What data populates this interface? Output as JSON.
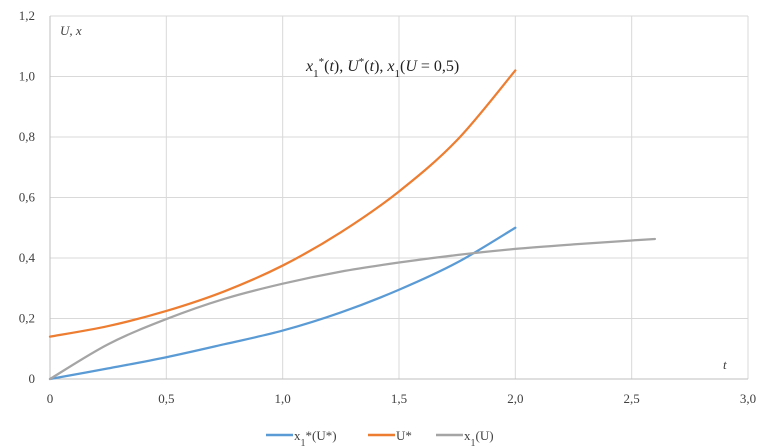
{
  "chart_data": {
    "type": "line",
    "title": {
      "parts": [
        {
          "text": "x",
          "style": "it"
        },
        {
          "text": "1",
          "style": "sub"
        },
        {
          "text": "*",
          "style": "sup"
        },
        {
          "text": "(",
          "style": "plain"
        },
        {
          "text": "t",
          "style": "it"
        },
        {
          "text": "), ",
          "style": "plain"
        },
        {
          "text": "U",
          "style": "it"
        },
        {
          "text": "*",
          "style": "sup"
        },
        {
          "text": "(",
          "style": "plain"
        },
        {
          "text": "t",
          "style": "it"
        },
        {
          "text": "), ",
          "style": "plain"
        },
        {
          "text": "x",
          "style": "it"
        },
        {
          "text": "1",
          "style": "sub"
        },
        {
          "text": "(",
          "style": "plain"
        },
        {
          "text": "U",
          "style": "it"
        },
        {
          "text": " = 0,5)",
          "style": "plain"
        }
      ]
    },
    "xlabel": "t",
    "ylabel": "U, x",
    "xlim": [
      0,
      3.0
    ],
    "ylim": [
      0,
      1.2
    ],
    "x_ticks": [
      "0",
      "0,5",
      "1,0",
      "1,5",
      "2,0",
      "2,5",
      "3,0"
    ],
    "y_ticks": [
      "0",
      "0,2",
      "0,4",
      "0,6",
      "0,8",
      "1,0",
      "1,2"
    ],
    "grid": true,
    "legend_position": "bottom",
    "series": [
      {
        "name": "x1*(U*)",
        "color": "#5B9BD5",
        "x": [
          0,
          0.25,
          0.5,
          0.75,
          1.0,
          1.25,
          1.5,
          1.75,
          2.0
        ],
        "y": [
          0,
          0.035,
          0.072,
          0.115,
          0.16,
          0.22,
          0.295,
          0.385,
          0.5
        ]
      },
      {
        "name": "U*",
        "color": "#ED7D31",
        "x": [
          0,
          0.25,
          0.5,
          0.75,
          1.0,
          1.25,
          1.5,
          1.75,
          2.0
        ],
        "y": [
          0.14,
          0.175,
          0.225,
          0.29,
          0.375,
          0.485,
          0.62,
          0.79,
          1.02
        ]
      },
      {
        "name": "x1(U)",
        "color": "#A5A5A5",
        "x": [
          0,
          0.25,
          0.5,
          0.75,
          1.0,
          1.25,
          1.5,
          1.75,
          2.0,
          2.25,
          2.5,
          2.6
        ],
        "y": [
          0,
          0.115,
          0.198,
          0.265,
          0.315,
          0.355,
          0.385,
          0.41,
          0.43,
          0.445,
          0.458,
          0.463
        ]
      }
    ]
  }
}
